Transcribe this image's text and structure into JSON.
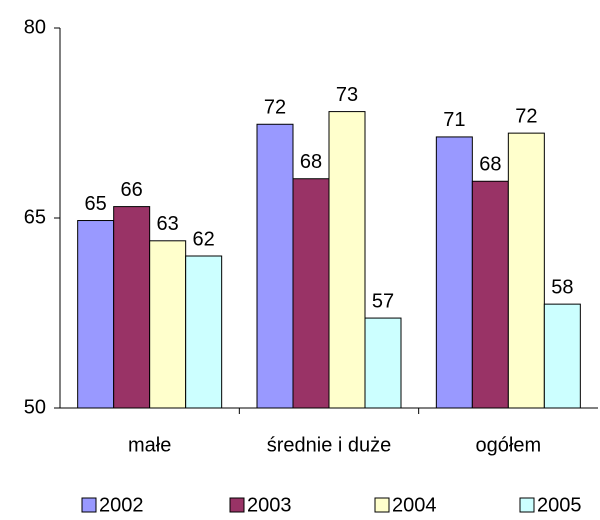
{
  "chart_data": {
    "type": "bar",
    "categories": [
      "małe",
      "średnie i duże",
      "ogółem"
    ],
    "series": [
      {
        "name": "2002",
        "color": "#9999ff",
        "values": [
          64.8,
          72.4,
          71.4
        ],
        "value_labels": [
          "65",
          "72",
          "71"
        ]
      },
      {
        "name": "2003",
        "color": "#993366",
        "values": [
          65.9,
          68.1,
          67.9
        ],
        "value_labels": [
          "66",
          "68",
          "68"
        ]
      },
      {
        "name": "2004",
        "color": "#ffffcc",
        "values": [
          63.2,
          73.4,
          71.7
        ],
        "value_labels": [
          "63",
          "73",
          "72"
        ]
      },
      {
        "name": "2005",
        "color": "#ccffff",
        "values": [
          62.0,
          57.1,
          58.2
        ],
        "value_labels": [
          "62",
          "57",
          "58"
        ]
      }
    ],
    "ylim": [
      50,
      80
    ],
    "yticks": [
      50,
      65,
      80
    ],
    "grid": false,
    "legend": "bottom"
  }
}
